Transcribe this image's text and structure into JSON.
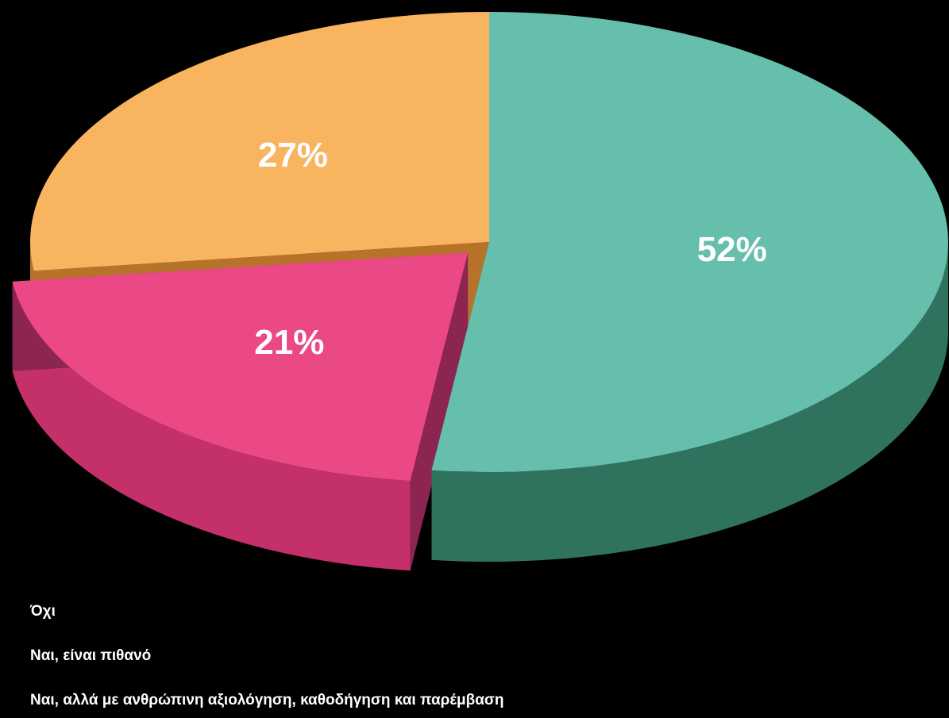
{
  "chart_data": {
    "type": "pie",
    "style": "3d-exploded",
    "categories": [
      "Όχι",
      "Ναι, είναι πιθανό",
      "Ναι, αλλά με ανθρώπινη αξιολόγηση, καθοδήγηση και παρέμβαση"
    ],
    "values": [
      52,
      21,
      27
    ],
    "value_labels": [
      "52%",
      "21%",
      "27%"
    ],
    "unit": "%",
    "colors": {
      "top": [
        "#66BFAC",
        "#EB4886",
        "#F8B45E"
      ],
      "side": [
        "#2F735F",
        "#C4306A",
        "#B8732A"
      ],
      "wedge_face": [
        "#2F735F",
        "#8C2552",
        "#B8732A"
      ]
    },
    "legend": {
      "placement": "bottom-left",
      "items": [
        "Όχι",
        "Ναι, είναι πιθανό",
        "Ναι, αλλά με ανθρώπινη αξιολόγηση, καθοδήγηση και παρέμβαση"
      ]
    }
  }
}
